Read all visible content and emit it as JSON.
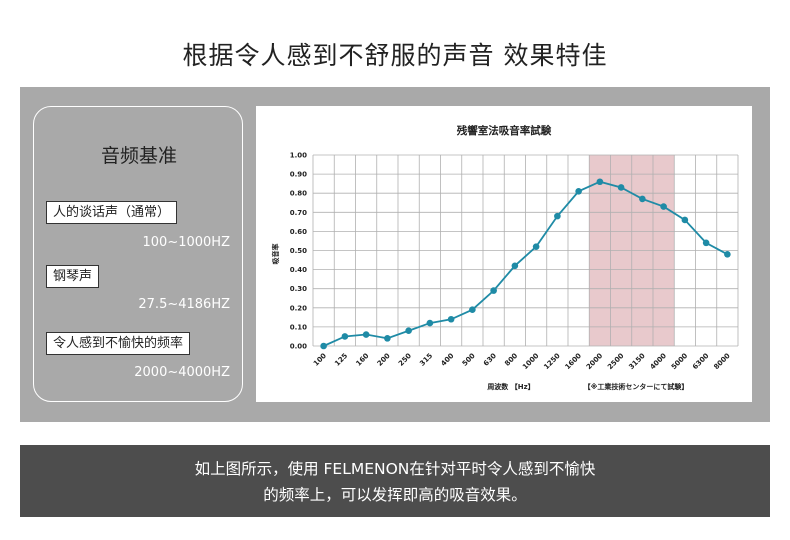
{
  "header": {
    "title": "根据令人感到不舒服的声音 效果特佳"
  },
  "panel": {
    "title": "音频基准",
    "items": [
      {
        "label": "人的谈话声（通常）",
        "range": "100~1000HZ"
      },
      {
        "label": "钢琴声",
        "range": "27.5~4186HZ"
      },
      {
        "label": "令人感到不愉快的频率",
        "range": "2000~4000HZ"
      }
    ]
  },
  "chart_data": {
    "type": "line",
    "title": "残響室法吸音率試験",
    "xlabel": "周波数 【Hz】",
    "ylabel": "吸音率",
    "note": "【※工業技術センターにて試験】",
    "categories": [
      "100",
      "125",
      "160",
      "200",
      "250",
      "315",
      "400",
      "500",
      "630",
      "800",
      "1000",
      "1250",
      "1600",
      "2000",
      "2500",
      "3150",
      "4000",
      "5000",
      "6300",
      "8000"
    ],
    "series": [
      {
        "values": [
          0.0,
          0.05,
          0.06,
          0.04,
          0.08,
          0.12,
          0.14,
          0.19,
          0.29,
          0.42,
          0.52,
          0.68,
          0.81,
          0.86,
          0.83,
          0.77,
          0.73,
          0.66,
          0.54,
          0.48
        ]
      }
    ],
    "ylim": [
      0,
      1.0
    ],
    "yticks": [
      "0.00",
      "0.10",
      "0.20",
      "0.30",
      "0.40",
      "0.50",
      "0.60",
      "0.70",
      "0.80",
      "0.90",
      "1.00"
    ],
    "highlight_range": [
      "2000",
      "4000"
    ],
    "colors": {
      "line": "#1f8ba6",
      "marker": "#1f8ba6",
      "highlight": "#e8c9cc",
      "grid": "#b0b0b0"
    },
    "grid": true,
    "legend": "none"
  },
  "footer": {
    "line1": "如上图所示，使用 FELMENON在针对平时令人感到不愉快",
    "line2": "的频率上，可以发挥即高的吸音效果。"
  }
}
